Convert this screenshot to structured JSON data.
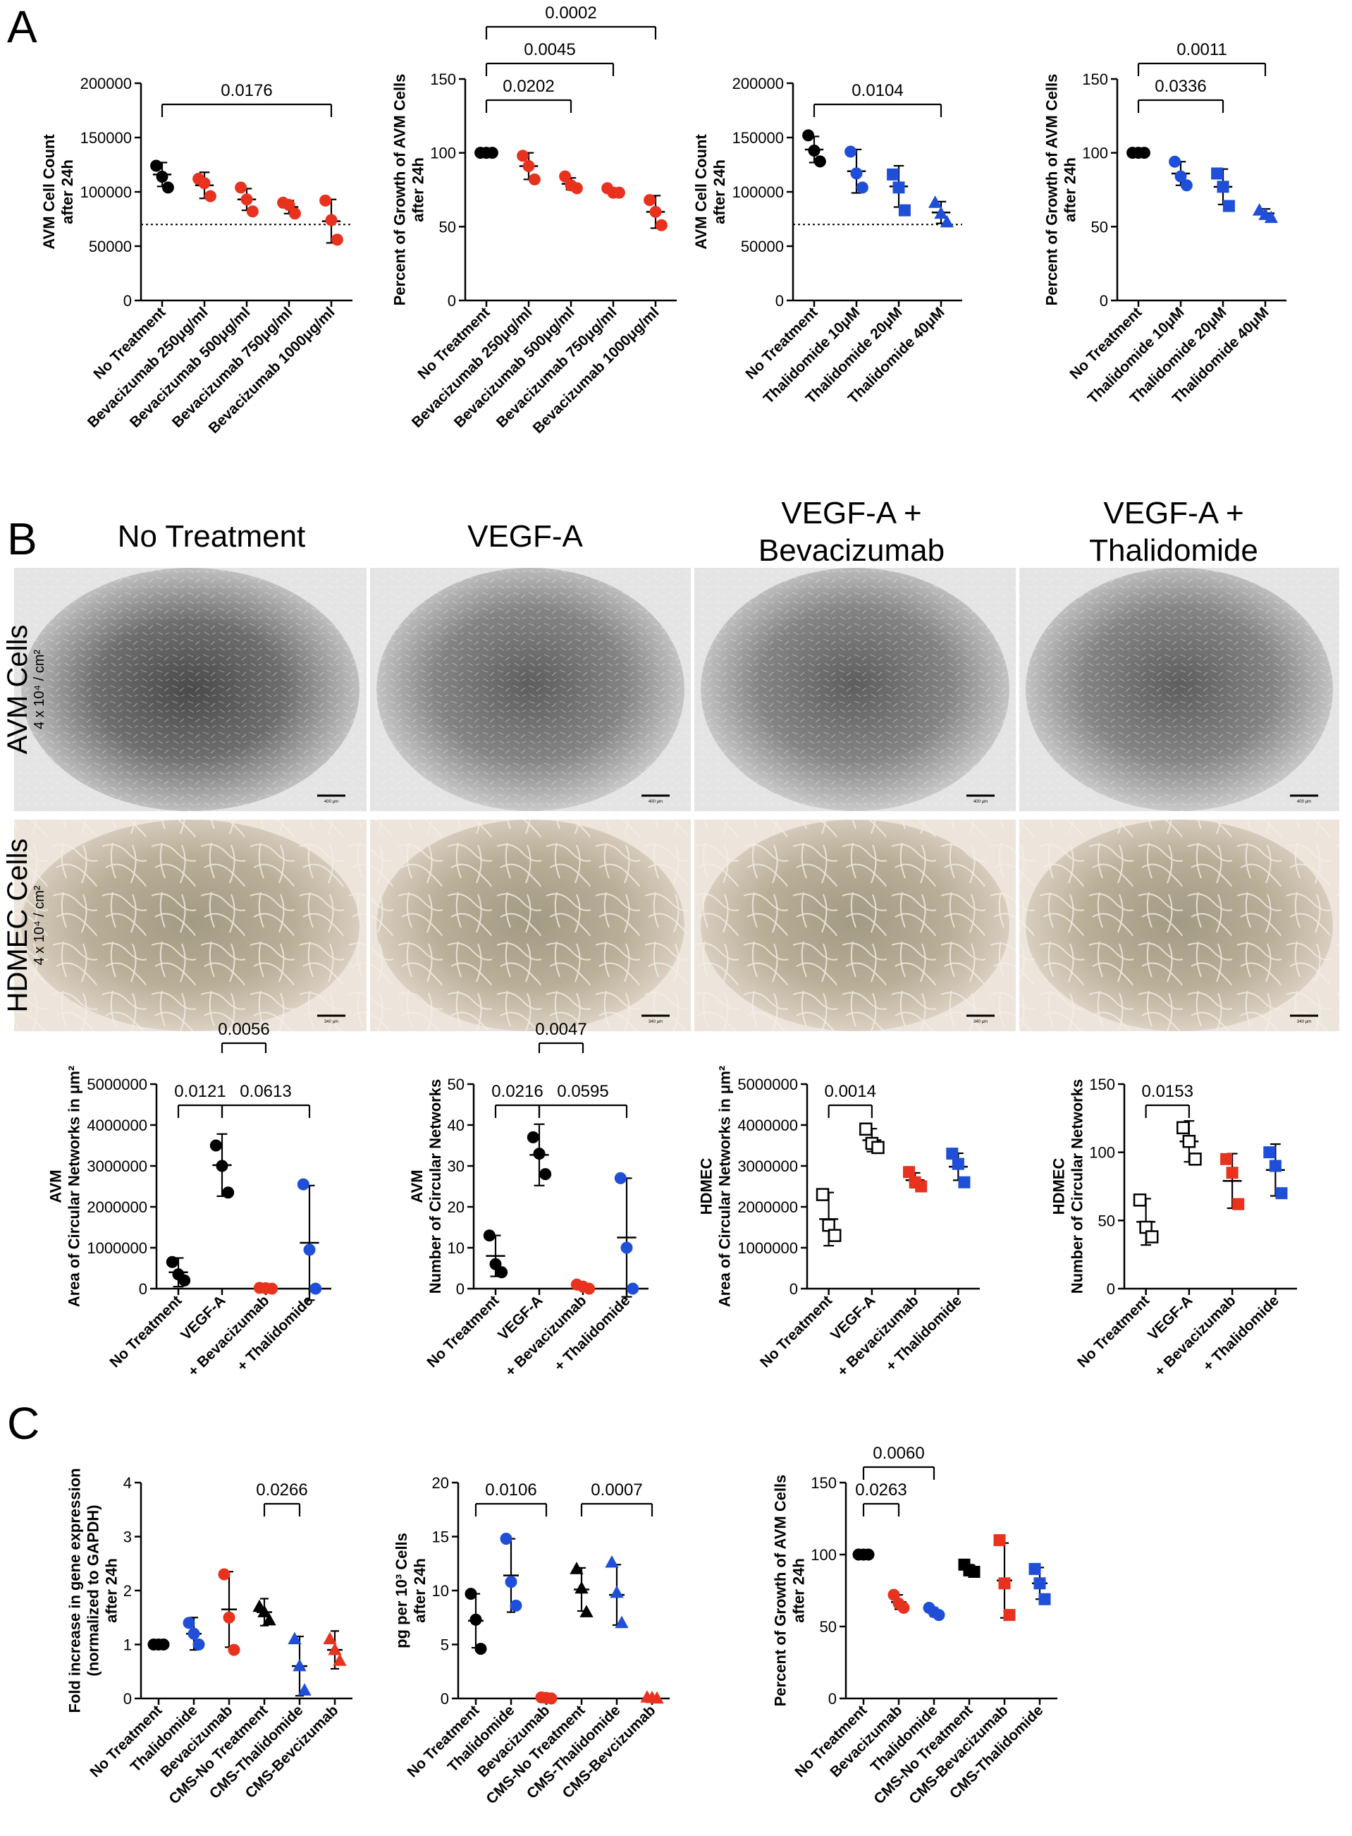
{
  "panels": {
    "A": "A",
    "B": "B",
    "C": "C"
  },
  "images": {
    "columns": [
      "No Treatment",
      "VEGF-A",
      "VEGF-A +\nBevacizumab",
      "VEGF-A +\nThalidomide"
    ],
    "rows": [
      {
        "label": "AVM Cells",
        "sub": "4 x 10⁴ / cm²",
        "scalebar": "400 μm"
      },
      {
        "label": "HDMEC Cells",
        "sub": "4 x 10⁴ / cm²",
        "scalebar": "340 μm"
      }
    ]
  },
  "chart_data": [
    {
      "id": "a1",
      "type": "scatter",
      "ylabel": [
        "AVM Cell Count",
        "after 24h"
      ],
      "ylim": [
        0,
        200000
      ],
      "yticks": [
        0,
        50000,
        100000,
        150000,
        200000
      ],
      "categories": [
        "No Treatment",
        "Bevacizumab 250μg/ml",
        "Bevacizumab 500μg/ml",
        "Bevacizumab 750μg/ml",
        "Bevacizumab 1000μg/ml"
      ],
      "colors": [
        "#000000",
        "#e8321e",
        "#e8321e",
        "#e8321e",
        "#e8321e"
      ],
      "marker": "circle",
      "fills": [
        "filled",
        "filled",
        "filled",
        "filled",
        "filled"
      ],
      "points": [
        [
          124000,
          114000,
          104000
        ],
        [
          112000,
          108000,
          96000
        ],
        [
          104000,
          93000,
          82000
        ],
        [
          90000,
          88000,
          80000
        ],
        [
          92000,
          74000,
          56000
        ]
      ],
      "means": [
        116000,
        106000,
        93000,
        86000,
        73000
      ],
      "errors": [
        11000,
        12000,
        10000,
        6000,
        20000
      ],
      "refline": 70000,
      "comparisons": [
        {
          "from": 0,
          "to": 4,
          "label": "0.0176",
          "level": 0
        }
      ]
    },
    {
      "id": "a2",
      "type": "scatter",
      "ylabel": [
        "Percent of Growth of AVM Cells",
        "after 24h"
      ],
      "ylim": [
        0,
        150
      ],
      "yticks": [
        0,
        50,
        100,
        150
      ],
      "categories": [
        "No Treatment",
        "Bevacizumab 250μg/ml",
        "Bevacizumab 500μg/ml",
        "Bevacizumab 750μg/ml",
        "Bevacizumab 1000μg/ml"
      ],
      "colors": [
        "#000000",
        "#e8321e",
        "#e8321e",
        "#e8321e",
        "#e8321e"
      ],
      "marker": "circle",
      "fills": [
        "filled",
        "filled",
        "filled",
        "filled",
        "filled"
      ],
      "points": [
        [
          100,
          100,
          100
        ],
        [
          98,
          91,
          82
        ],
        [
          84,
          78,
          76
        ],
        [
          76,
          73,
          73
        ],
        [
          68,
          60,
          51
        ]
      ],
      "means": [
        100,
        91,
        79,
        74,
        60
      ],
      "errors": [
        0,
        9,
        4,
        2,
        11
      ],
      "comparisons": [
        {
          "from": 0,
          "to": 2,
          "label": "0.0202",
          "level": 0
        },
        {
          "from": 0,
          "to": 3,
          "label": "0.0045",
          "level": 1
        },
        {
          "from": 0,
          "to": 4,
          "label": "0.0002",
          "level": 2
        }
      ]
    },
    {
      "id": "a3",
      "type": "scatter",
      "ylabel": [
        "AVM Cell Count",
        "after 24h"
      ],
      "ylim": [
        0,
        200000
      ],
      "yticks": [
        0,
        50000,
        100000,
        150000,
        200000
      ],
      "categories": [
        "No Treatment",
        "Thalidomide 10μM",
        "Thalidomide 20μM",
        "Thalidomide 40μM"
      ],
      "colors": [
        "#000000",
        "#1f4fd8",
        "#1f4fd8",
        "#1f4fd8"
      ],
      "marker": [
        "circle",
        "circle",
        "square",
        "triangle"
      ],
      "fills": [
        "filled",
        "filled",
        "filled",
        "filled"
      ],
      "points": [
        [
          152000,
          138000,
          128000
        ],
        [
          137000,
          117000,
          104000
        ],
        [
          116000,
          104000,
          83000
        ],
        [
          90000,
          80000,
          72000
        ]
      ],
      "means": [
        139000,
        119000,
        105000,
        81000
      ],
      "errors": [
        12000,
        20000,
        19000,
        10000
      ],
      "refline": 70000,
      "comparisons": [
        {
          "from": 0,
          "to": 3,
          "label": "0.0104",
          "level": 0
        }
      ]
    },
    {
      "id": "a4",
      "type": "scatter",
      "ylabel": [
        "Percent of Growth of AVM Cells",
        "after 24h"
      ],
      "ylim": [
        0,
        150
      ],
      "yticks": [
        0,
        50,
        100,
        150
      ],
      "categories": [
        "No Treatment",
        "Thalidomide 10μM",
        "Thalidomide 20μM",
        "Thalidomide 40μM"
      ],
      "colors": [
        "#000000",
        "#1f4fd8",
        "#1f4fd8",
        "#1f4fd8"
      ],
      "marker": [
        "circle",
        "circle",
        "square",
        "triangle"
      ],
      "fills": [
        "filled",
        "filled",
        "filled",
        "filled"
      ],
      "points": [
        [
          100,
          100,
          100
        ],
        [
          94,
          84,
          78
        ],
        [
          86,
          77,
          64
        ],
        [
          61,
          58,
          56
        ]
      ],
      "means": [
        100,
        86,
        77,
        59
      ],
      "errors": [
        0,
        8,
        12,
        3
      ],
      "comparisons": [
        {
          "from": 0,
          "to": 2,
          "label": "0.0336",
          "level": 0
        },
        {
          "from": 0,
          "to": 3,
          "label": "0.0011",
          "level": 1
        }
      ]
    },
    {
      "id": "b1",
      "type": "scatter",
      "ylabel": [
        "AVM",
        "Area of Circular Networks in μm²"
      ],
      "ylim": [
        0,
        5000000
      ],
      "yticks": [
        0,
        1000000,
        2000000,
        3000000,
        4000000,
        5000000
      ],
      "categories": [
        "No Treatment",
        "VEGF-A",
        "+ Bevacizumab",
        "+ Thalidomide"
      ],
      "colors": [
        "#000000",
        "#000000",
        "#e8321e",
        "#1f4fd8"
      ],
      "marker": "circle",
      "fills": [
        "filled",
        "filled",
        "filled",
        "filled"
      ],
      "points": [
        [
          650000,
          350000,
          200000
        ],
        [
          3500000,
          3000000,
          2350000
        ],
        [
          20000,
          10000,
          0
        ],
        [
          2550000,
          950000,
          0
        ]
      ],
      "means": [
        400000,
        3020000,
        10000,
        1120000
      ],
      "errors": [
        350000,
        760000,
        10000,
        1400000
      ],
      "comparisons": [
        {
          "from": 0,
          "to": 1,
          "label": "0.0121",
          "level": 0
        },
        {
          "from": 1,
          "to": 3,
          "label": "0.0613",
          "level": 0
        },
        {
          "from": 1,
          "to": 2,
          "label": "0.0056",
          "level": 1,
          "down": true
        }
      ]
    },
    {
      "id": "b2",
      "type": "scatter",
      "ylabel": [
        "AVM",
        "Number of Circular Networks"
      ],
      "ylim": [
        0,
        50
      ],
      "yticks": [
        0,
        10,
        20,
        30,
        40,
        50
      ],
      "categories": [
        "No Treatment",
        "VEGF-A",
        "+ Bevacizumab",
        "+ Thalidomide"
      ],
      "colors": [
        "#000000",
        "#000000",
        "#e8321e",
        "#1f4fd8"
      ],
      "marker": "circle",
      "fills": [
        "filled",
        "filled",
        "filled",
        "filled"
      ],
      "points": [
        [
          13,
          6,
          4
        ],
        [
          37,
          33,
          28
        ],
        [
          1,
          0.5,
          0
        ],
        [
          27,
          10,
          0
        ]
      ],
      "means": [
        8,
        32.7,
        0.5,
        12.5
      ],
      "errors": [
        5,
        7.5,
        0.5,
        14.5
      ],
      "comparisons": [
        {
          "from": 0,
          "to": 1,
          "label": "0.0216",
          "level": 0
        },
        {
          "from": 1,
          "to": 3,
          "label": "0.0595",
          "level": 0
        },
        {
          "from": 1,
          "to": 2,
          "label": "0.0047",
          "level": 1,
          "down": true
        }
      ]
    },
    {
      "id": "b3",
      "type": "scatter",
      "ylabel": [
        "HDMEC",
        "Area of Circular Networks in μm²"
      ],
      "ylim": [
        0,
        5000000
      ],
      "yticks": [
        0,
        1000000,
        2000000,
        3000000,
        4000000,
        5000000
      ],
      "categories": [
        "No Treatment",
        "VEGF-A",
        "+ Bevacizumab",
        "+ Thalidomide"
      ],
      "colors": [
        "#000000",
        "#000000",
        "#e8321e",
        "#1f4fd8"
      ],
      "marker": "square",
      "fills": [
        "open",
        "open",
        "filled",
        "filled"
      ],
      "points": [
        [
          2300000,
          1550000,
          1300000
        ],
        [
          3900000,
          3550000,
          3450000
        ],
        [
          2850000,
          2600000,
          2500000
        ],
        [
          3300000,
          3050000,
          2600000
        ]
      ],
      "means": [
        1700000,
        3630000,
        2650000,
        2980000
      ],
      "errors": [
        650000,
        280000,
        180000,
        330000
      ],
      "comparisons": [
        {
          "from": 0,
          "to": 1,
          "label": "0.0014",
          "level": 0
        }
      ]
    },
    {
      "id": "b4",
      "type": "scatter",
      "ylabel": [
        "HDMEC",
        "Number of Circular Networks"
      ],
      "ylim": [
        0,
        150
      ],
      "yticks": [
        0,
        50,
        100,
        150
      ],
      "categories": [
        "No Treatment",
        "VEGF-A",
        "+ Bevacizumab",
        "+ Thalidomide"
      ],
      "colors": [
        "#000000",
        "#000000",
        "#e8321e",
        "#1f4fd8"
      ],
      "marker": "square",
      "fills": [
        "open",
        "open",
        "filled",
        "filled"
      ],
      "points": [
        [
          65,
          45,
          38
        ],
        [
          118,
          108,
          95
        ],
        [
          95,
          85,
          62
        ],
        [
          100,
          90,
          70
        ]
      ],
      "means": [
        49,
        108,
        79,
        87
      ],
      "errors": [
        17,
        15,
        20,
        19
      ],
      "comparisons": [
        {
          "from": 0,
          "to": 1,
          "label": "0.0153",
          "level": 0
        }
      ]
    },
    {
      "id": "c1",
      "type": "scatter",
      "ylabel": [
        "Fold increase in gene expression",
        "(normalized to GAPDH)",
        "after 24h"
      ],
      "ylim": [
        0,
        4
      ],
      "yticks": [
        0,
        1,
        2,
        3,
        4
      ],
      "categories": [
        "No Treatment",
        "Thalidomide",
        "Bevacizumab",
        "CMS-No Treatment",
        "CMS-Thalidomide",
        "CMS-Bevcizumab"
      ],
      "colors": [
        "#000000",
        "#1f4fd8",
        "#e8321e",
        "#000000",
        "#1f4fd8",
        "#e8321e"
      ],
      "marker": [
        "circle",
        "circle",
        "circle",
        "triangle",
        "triangle",
        "triangle"
      ],
      "fills": [
        "filled",
        "filled",
        "filled",
        "filled",
        "filled",
        "filled"
      ],
      "points": [
        [
          1,
          1,
          1
        ],
        [
          1.4,
          1.2,
          1.0
        ],
        [
          2.3,
          1.5,
          0.9
        ],
        [
          1.7,
          1.6,
          1.45
        ],
        [
          1.1,
          0.6,
          0.15
        ],
        [
          1.1,
          0.9,
          0.7
        ]
      ],
      "means": [
        1,
        1.2,
        1.65,
        1.6,
        0.6,
        0.9
      ],
      "errors": [
        0,
        0.3,
        0.7,
        0.25,
        0.55,
        0.35
      ],
      "comparisons": [
        {
          "from": 3,
          "to": 4,
          "label": "0.0266",
          "level": 0
        }
      ]
    },
    {
      "id": "c2",
      "type": "scatter",
      "ylabel": [
        "pg per 10³ Cells",
        "after 24h"
      ],
      "ylim": [
        0,
        20
      ],
      "yticks": [
        0,
        5,
        10,
        15,
        20
      ],
      "categories": [
        "No Treatment",
        "Thalidomide",
        "Bevacizumab",
        "CMS-No Treatment",
        "CMS-Thalidomide",
        "CMS-Bevcizumab"
      ],
      "colors": [
        "#000000",
        "#1f4fd8",
        "#e8321e",
        "#000000",
        "#1f4fd8",
        "#e8321e"
      ],
      "marker": [
        "circle",
        "circle",
        "circle",
        "triangle",
        "triangle",
        "triangle"
      ],
      "fills": [
        "filled",
        "filled",
        "filled",
        "filled",
        "filled",
        "filled"
      ],
      "points": [
        [
          9.7,
          7.3,
          4.6
        ],
        [
          14.8,
          10.8,
          8.6
        ],
        [
          0.1,
          0.05,
          0
        ],
        [
          12,
          10.2,
          8
        ],
        [
          12.6,
          9.8,
          7
        ],
        [
          0.1,
          0.05,
          0
        ]
      ],
      "means": [
        7.2,
        11.4,
        0.05,
        10.1,
        9.6,
        0.05
      ],
      "errors": [
        2.5,
        3.4,
        0.1,
        2,
        2.8,
        0.1
      ],
      "comparisons": [
        {
          "from": 0,
          "to": 2,
          "label": "0.0106",
          "level": 0
        },
        {
          "from": 3,
          "to": 5,
          "label": "0.0007",
          "level": 0
        }
      ]
    },
    {
      "id": "c3",
      "type": "scatter",
      "ylabel": [
        "Percent of Growth of AVM Cells",
        "after 24h"
      ],
      "ylim": [
        0,
        150
      ],
      "yticks": [
        0,
        50,
        100,
        150
      ],
      "categories": [
        "No Treatment",
        "Bevacizumab",
        "Thalidomide",
        "CMS-No Treatment",
        "CMS-Bevacizumab",
        "CMS-Thalidomide"
      ],
      "colors": [
        "#000000",
        "#e8321e",
        "#1f4fd8",
        "#000000",
        "#e8321e",
        "#1f4fd8"
      ],
      "marker": [
        "circle",
        "circle",
        "circle",
        "square",
        "square",
        "square"
      ],
      "fills": [
        "filled",
        "filled",
        "filled",
        "filled",
        "filled",
        "filled"
      ],
      "points": [
        [
          100,
          100,
          100
        ],
        [
          72,
          66,
          63
        ],
        [
          63,
          60,
          58
        ],
        [
          93,
          89,
          88
        ],
        [
          110,
          80,
          58
        ],
        [
          90,
          80,
          69
        ]
      ],
      "means": [
        100,
        67,
        60,
        90,
        82,
        80
      ],
      "errors": [
        0,
        5,
        3,
        3,
        26,
        11
      ],
      "comparisons": [
        {
          "from": 0,
          "to": 1,
          "label": "0.0263",
          "level": 0
        },
        {
          "from": 0,
          "to": 2,
          "label": "0.0060",
          "level": 1
        }
      ]
    }
  ]
}
